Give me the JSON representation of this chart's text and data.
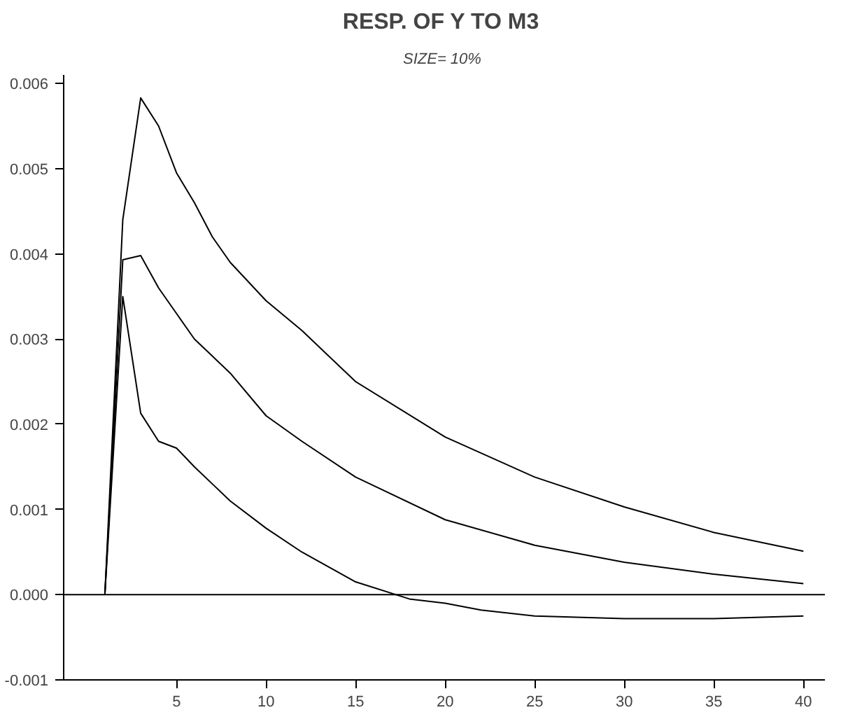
{
  "chart_data": {
    "type": "line",
    "title": "RESP. OF Y TO  M3",
    "subtitle": "SIZE=  10%",
    "xlim": [
      -1.3,
      41.2
    ],
    "ylim": [
      -0.001,
      0.0061
    ],
    "xticks": [
      5,
      10,
      15,
      20,
      25,
      30,
      35,
      40
    ],
    "yticks": [
      {
        "value": -0.001,
        "label": "-0.001"
      },
      {
        "value": 0,
        "label": "0.000"
      },
      {
        "value": 0.001,
        "label": "0.001"
      },
      {
        "value": 0.002,
        "label": "0.002"
      },
      {
        "value": 0.003,
        "label": "0.003"
      },
      {
        "value": 0.004,
        "label": "0.004"
      },
      {
        "value": 0.005,
        "label": "0.005"
      },
      {
        "value": 0.006,
        "label": "0.006"
      }
    ],
    "grid": false,
    "marker": "none",
    "line_style": "solid",
    "ref_lines": [
      {
        "axis": "y",
        "value": 0,
        "label": null,
        "color": "#000000"
      }
    ],
    "series": [
      {
        "color": "#000000",
        "x": [
          1,
          2,
          3,
          4,
          5,
          6,
          7,
          8,
          10,
          12,
          15,
          20,
          25,
          30,
          35,
          40
        ],
        "values": [
          0,
          0.0044,
          0.00583,
          0.0055,
          0.00495,
          0.0046,
          0.0042,
          0.0039,
          0.00345,
          0.0031,
          0.0025,
          0.00185,
          0.00138,
          0.00103,
          0.00073,
          0.00051
        ]
      },
      {
        "color": "#000000",
        "x": [
          1,
          2,
          3,
          4,
          5,
          6,
          7,
          8,
          10,
          12,
          15,
          20,
          25,
          30,
          35,
          40
        ],
        "values": [
          0,
          0.00393,
          0.00398,
          0.0036,
          0.0033,
          0.003,
          0.0028,
          0.0026,
          0.0021,
          0.0018,
          0.00138,
          0.00088,
          0.00058,
          0.00038,
          0.00024,
          0.00013
        ]
      },
      {
        "color": "#000000",
        "x": [
          1,
          2,
          3,
          4,
          5,
          6,
          7,
          8,
          10,
          12,
          15,
          18,
          20,
          22,
          25,
          30,
          35,
          40
        ],
        "values": [
          0,
          0.0035,
          0.00213,
          0.0018,
          0.00172,
          0.0015,
          0.0013,
          0.0011,
          0.00078,
          0.0005,
          0.00015,
          -5e-05,
          -0.0001,
          -0.00018,
          -0.00025,
          -0.00028,
          -0.00028,
          -0.00025
        ]
      }
    ]
  }
}
